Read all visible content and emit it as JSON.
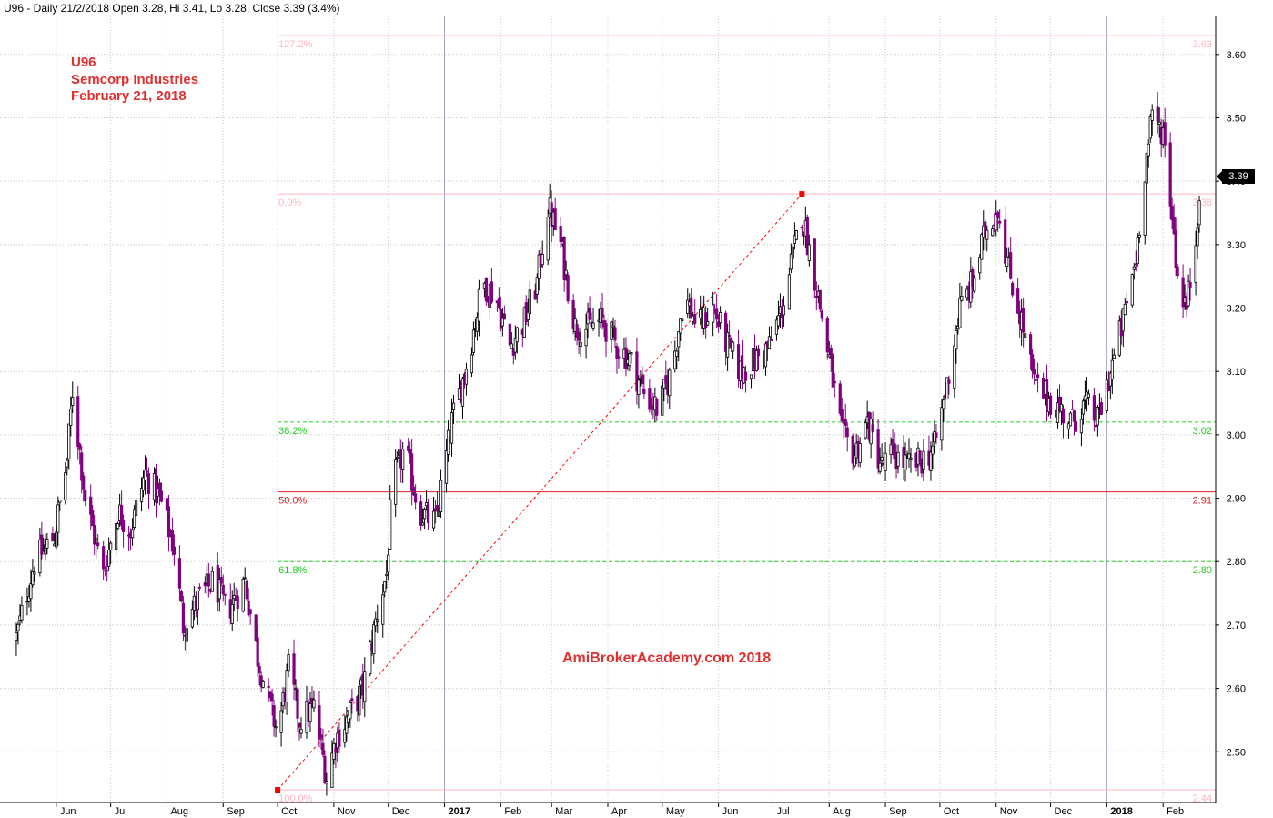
{
  "header": {
    "title": "U96 - Daily 21/2/2018 Open 3.28, Hi 3.41, Lo 3.28, Close 3.39 (3.4%)"
  },
  "annotation": {
    "ticker": "U96",
    "company": "Semcorp Industries",
    "date": "February 21, 2018"
  },
  "watermark": "AmiBrokerAcademy.com   2018",
  "colors": {
    "up": "#000000",
    "down": "#800080",
    "fib_pink": "#ffb6c1",
    "fib_green": "#22cc22",
    "fib_red": "#e02020",
    "text_red": "#e03030",
    "grid": "#c8c8c8"
  },
  "chart_data": {
    "type": "candlestick",
    "ylim": [
      2.42,
      3.66
    ],
    "yticks": [
      "2.50",
      "2.60",
      "2.70",
      "2.80",
      "2.90",
      "3.00",
      "3.10",
      "3.20",
      "3.30",
      "3.40",
      "3.50",
      "3.60"
    ],
    "xticks": [
      {
        "label": "Jun",
        "x": "2016-06-01"
      },
      {
        "label": "Jul",
        "x": "2016-07-01"
      },
      {
        "label": "Aug",
        "x": "2016-08-01"
      },
      {
        "label": "Sep",
        "x": "2016-09-01"
      },
      {
        "label": "Oct",
        "x": "2016-10-01"
      },
      {
        "label": "Nov",
        "x": "2016-11-01"
      },
      {
        "label": "Dec",
        "x": "2016-12-01"
      },
      {
        "label": "2017",
        "x": "2017-01-01",
        "bold": true
      },
      {
        "label": "Feb",
        "x": "2017-02-01"
      },
      {
        "label": "Mar",
        "x": "2017-03-01"
      },
      {
        "label": "Apr",
        "x": "2017-04-01"
      },
      {
        "label": "May",
        "x": "2017-05-01"
      },
      {
        "label": "Jun",
        "x": "2017-06-01"
      },
      {
        "label": "Jul",
        "x": "2017-07-01"
      },
      {
        "label": "Aug",
        "x": "2017-08-01"
      },
      {
        "label": "Sep",
        "x": "2017-09-01"
      },
      {
        "label": "Oct",
        "x": "2017-10-01"
      },
      {
        "label": "Nov",
        "x": "2017-11-01"
      },
      {
        "label": "Dec",
        "x": "2017-12-01"
      },
      {
        "label": "2018",
        "x": "2018-01-01",
        "bold": true
      },
      {
        "label": "Feb",
        "x": "2018-02-01"
      }
    ],
    "fibonacci": {
      "swing": {
        "from": {
          "x": "2016-10-01",
          "y": 2.44
        },
        "to": {
          "x": "2017-07-17",
          "y": 3.38
        }
      },
      "levels": [
        {
          "ratio": "127.2%",
          "value": "3.63",
          "price": 3.63,
          "style": "pink"
        },
        {
          "ratio": "0.0%",
          "value": "3.38",
          "price": 3.38,
          "style": "pink"
        },
        {
          "ratio": "38.2%",
          "value": "3.02",
          "price": 3.02,
          "style": "green-dashed"
        },
        {
          "ratio": "50.0%",
          "value": "2.91",
          "price": 2.91,
          "style": "red"
        },
        {
          "ratio": "61.8%",
          "value": "2.80",
          "price": 2.8,
          "style": "green-dashed"
        },
        {
          "ratio": "100.0%",
          "value": "2.44",
          "price": 2.44,
          "style": "pink"
        }
      ]
    },
    "last_close": "3.39",
    "close_path": [
      [
        "2016-05-10",
        2.68
      ],
      [
        "2016-05-20",
        2.8
      ],
      [
        "2016-05-31",
        2.84
      ],
      [
        "2016-06-07",
        2.96
      ],
      [
        "2016-06-10",
        3.07
      ],
      [
        "2016-06-17",
        2.9
      ],
      [
        "2016-06-27",
        2.78
      ],
      [
        "2016-07-05",
        2.88
      ],
      [
        "2016-07-12",
        2.85
      ],
      [
        "2016-07-20",
        2.94
      ],
      [
        "2016-07-28",
        2.9
      ],
      [
        "2016-08-05",
        2.82
      ],
      [
        "2016-08-10",
        2.7
      ],
      [
        "2016-08-18",
        2.74
      ],
      [
        "2016-08-27",
        2.77
      ],
      [
        "2016-09-03",
        2.72
      ],
      [
        "2016-09-13",
        2.77
      ],
      [
        "2016-09-20",
        2.65
      ],
      [
        "2016-09-27",
        2.57
      ],
      [
        "2016-10-01",
        2.53
      ],
      [
        "2016-10-07",
        2.63
      ],
      [
        "2016-10-13",
        2.55
      ],
      [
        "2016-10-21",
        2.57
      ],
      [
        "2016-10-28",
        2.46
      ],
      [
        "2016-11-02",
        2.52
      ],
      [
        "2016-11-10",
        2.56
      ],
      [
        "2016-11-17",
        2.6
      ],
      [
        "2016-11-25",
        2.72
      ],
      [
        "2016-11-30",
        2.78
      ],
      [
        "2016-12-03",
        2.92
      ],
      [
        "2016-12-10",
        2.98
      ],
      [
        "2016-12-18",
        2.88
      ],
      [
        "2016-12-27",
        2.86
      ],
      [
        "2017-01-05",
        3.02
      ],
      [
        "2017-01-14",
        3.12
      ],
      [
        "2017-01-22",
        3.24
      ],
      [
        "2017-01-29",
        3.22
      ],
      [
        "2017-02-06",
        3.14
      ],
      [
        "2017-02-14",
        3.18
      ],
      [
        "2017-02-21",
        3.24
      ],
      [
        "2017-02-27",
        3.36
      ],
      [
        "2017-03-06",
        3.3
      ],
      [
        "2017-03-14",
        3.17
      ],
      [
        "2017-03-22",
        3.17
      ],
      [
        "2017-03-29",
        3.18
      ],
      [
        "2017-04-06",
        3.14
      ],
      [
        "2017-04-13",
        3.12
      ],
      [
        "2017-04-22",
        3.06
      ],
      [
        "2017-04-29",
        3.04
      ],
      [
        "2017-05-06",
        3.1
      ],
      [
        "2017-05-13",
        3.22
      ],
      [
        "2017-05-21",
        3.17
      ],
      [
        "2017-05-29",
        3.2
      ],
      [
        "2017-06-06",
        3.14
      ],
      [
        "2017-06-13",
        3.1
      ],
      [
        "2017-06-22",
        3.12
      ],
      [
        "2017-06-29",
        3.14
      ],
      [
        "2017-07-06",
        3.2
      ],
      [
        "2017-07-12",
        3.28
      ],
      [
        "2017-07-17",
        3.35
      ],
      [
        "2017-07-24",
        3.25
      ],
      [
        "2017-08-01",
        3.12
      ],
      [
        "2017-08-08",
        3.0
      ],
      [
        "2017-08-15",
        2.97
      ],
      [
        "2017-08-22",
        3.02
      ],
      [
        "2017-08-30",
        2.95
      ],
      [
        "2017-09-05",
        2.97
      ],
      [
        "2017-09-14",
        2.95
      ],
      [
        "2017-09-21",
        2.96
      ],
      [
        "2017-09-28",
        2.98
      ],
      [
        "2017-10-05",
        3.08
      ],
      [
        "2017-10-12",
        3.2
      ],
      [
        "2017-10-19",
        3.24
      ],
      [
        "2017-10-26",
        3.32
      ],
      [
        "2017-11-02",
        3.36
      ],
      [
        "2017-11-08",
        3.26
      ],
      [
        "2017-11-15",
        3.18
      ],
      [
        "2017-11-22",
        3.08
      ],
      [
        "2017-11-29",
        3.06
      ],
      [
        "2017-12-06",
        3.04
      ],
      [
        "2017-12-13",
        3.02
      ],
      [
        "2017-12-20",
        3.05
      ],
      [
        "2017-12-27",
        3.02
      ],
      [
        "2018-01-03",
        3.1
      ],
      [
        "2018-01-10",
        3.18
      ],
      [
        "2018-01-17",
        3.28
      ],
      [
        "2018-01-22",
        3.42
      ],
      [
        "2018-01-26",
        3.5
      ],
      [
        "2018-02-01",
        3.48
      ],
      [
        "2018-02-06",
        3.35
      ],
      [
        "2018-02-09",
        3.25
      ],
      [
        "2018-02-14",
        3.2
      ],
      [
        "2018-02-19",
        3.31
      ],
      [
        "2018-02-21",
        3.39
      ]
    ]
  }
}
